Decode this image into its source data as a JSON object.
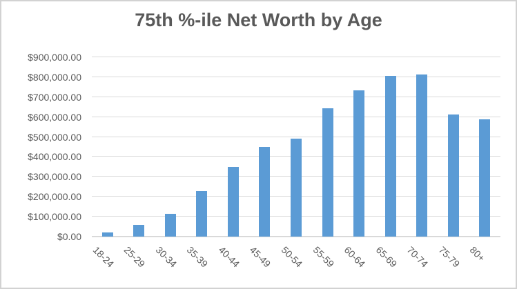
{
  "chart_data": {
    "type": "bar",
    "title": "75th %-ile Net Worth by Age",
    "categories": [
      "18-24",
      "25-29",
      "30-34",
      "35-39",
      "40-44",
      "45-49",
      "50-54",
      "55-59",
      "60-64",
      "65-69",
      "70-74",
      "75-79",
      "80+"
    ],
    "values": [
      22000,
      60000,
      115000,
      228000,
      348000,
      451000,
      492000,
      644000,
      735000,
      808000,
      815000,
      612000,
      590000
    ],
    "xlabel": "",
    "ylabel": "",
    "ylim": [
      0,
      900000
    ],
    "y_tick_step": 100000,
    "y_tick_labels": [
      "$0.00",
      "$100,000.00",
      "$200,000.00",
      "$300,000.00",
      "$400,000.00",
      "$500,000.00",
      "$600,000.00",
      "$700,000.00",
      "$800,000.00",
      "$900,000.00"
    ],
    "grid": true,
    "legend": "none",
    "colors": {
      "bar": "#5B9BD5",
      "gridline": "#D9D9D9",
      "axis_line": "#D9D9D9",
      "text": "#595959",
      "title_text": "#595959",
      "background": "#FFFFFF",
      "border": "#D2D2D2"
    }
  }
}
